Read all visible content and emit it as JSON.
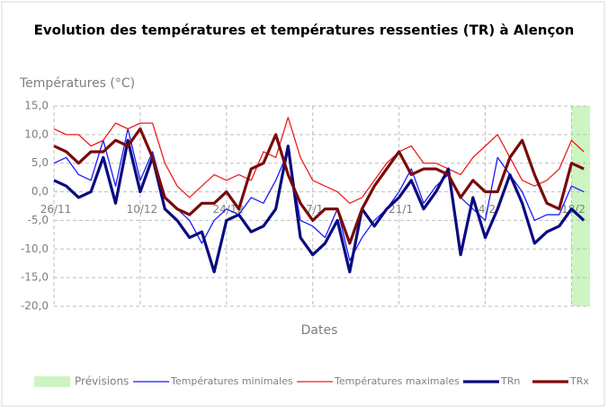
{
  "chart_data": {
    "type": "line",
    "title": "Evolution des températures et températures ressenties (TR) à Alençon",
    "y_label": "Températures (°C)",
    "x_label": "Dates",
    "x": [
      0,
      2,
      4,
      6,
      8,
      10,
      12,
      14,
      16,
      18,
      20,
      22,
      24,
      26,
      28,
      30,
      32,
      34,
      36,
      38,
      40,
      42,
      44,
      46,
      48,
      50,
      52,
      54,
      56,
      58,
      60,
      62,
      64,
      66,
      68,
      70,
      72,
      74,
      76,
      78,
      80,
      82,
      84,
      86
    ],
    "xlim": [
      0,
      87
    ],
    "xticks": [
      {
        "value": 0,
        "label": "26/11"
      },
      {
        "value": 14,
        "label": "10/12"
      },
      {
        "value": 28,
        "label": "24/12"
      },
      {
        "value": 42,
        "label": "7/1"
      },
      {
        "value": 56,
        "label": "21/1"
      },
      {
        "value": 70,
        "label": "4/2"
      },
      {
        "value": 84,
        "label": "18/2"
      }
    ],
    "ylim": [
      -20,
      15
    ],
    "yticks": [
      {
        "value": 15,
        "label": "15,0"
      },
      {
        "value": 10,
        "label": "10,0"
      },
      {
        "value": 5,
        "label": "5,0"
      },
      {
        "value": 0,
        "label": "0,0"
      },
      {
        "value": -5,
        "label": "-5,0"
      },
      {
        "value": -10,
        "label": "-10,0"
      },
      {
        "value": -15,
        "label": "-15,0"
      },
      {
        "value": -20,
        "label": "-20,0"
      }
    ],
    "grid": true,
    "forecast": {
      "name": "Prévisions",
      "color": "#ccf5c2",
      "range": [
        84,
        87
      ]
    },
    "series": [
      {
        "name": "Températures minimales",
        "color": "#1a1aff",
        "width": 1.3,
        "values": [
          5,
          6,
          3,
          2,
          9,
          1,
          11,
          2,
          7,
          -1,
          -3,
          -5,
          -9,
          -5,
          -3,
          -4,
          -1,
          -2,
          2,
          7,
          -5,
          -6,
          -8,
          -3,
          -12,
          -8,
          -5,
          -3,
          0,
          4,
          -2,
          1,
          3,
          -1,
          -3,
          -5,
          6,
          3,
          0,
          -5,
          -4,
          -4,
          1,
          0
        ]
      },
      {
        "name": "Températures maximales",
        "color": "#ee1c1c",
        "width": 1.3,
        "values": [
          11,
          10,
          10,
          8,
          9,
          12,
          11,
          12,
          12,
          5,
          1,
          -1,
          1,
          3,
          2,
          3,
          2,
          7,
          6,
          13,
          6,
          2,
          1,
          0,
          -2,
          -1,
          2,
          5,
          7,
          8,
          5,
          5,
          4,
          3,
          6,
          8,
          10,
          6,
          2,
          1,
          2,
          4,
          9,
          7
        ]
      },
      {
        "name": "TRn",
        "color": "#0a0a80",
        "width": 3.2,
        "values": [
          2,
          1,
          -1,
          0,
          6,
          -2,
          9,
          0,
          6,
          -3,
          -5,
          -8,
          -7,
          -14,
          -5,
          -4,
          -7,
          -6,
          -3,
          8,
          -8,
          -11,
          -9,
          -5,
          -14,
          -3,
          -6,
          -3,
          -1,
          2,
          -3,
          0,
          4,
          -11,
          -1,
          -8,
          -3,
          3,
          -2,
          -9,
          -7,
          -6,
          -3,
          -5
        ]
      },
      {
        "name": "TRx",
        "color": "#7a0a0a",
        "width": 3.2,
        "values": [
          8,
          7,
          5,
          7,
          7,
          9,
          8,
          11,
          6,
          -1,
          -3,
          -4,
          -2,
          -2,
          0,
          -3,
          4,
          5,
          10,
          3,
          -2,
          -5,
          -3,
          -3,
          -9,
          -3,
          1,
          4,
          7,
          3,
          4,
          4,
          3,
          -1,
          2,
          0,
          0,
          6,
          9,
          3,
          -2,
          -3,
          5,
          4
        ]
      }
    ]
  }
}
